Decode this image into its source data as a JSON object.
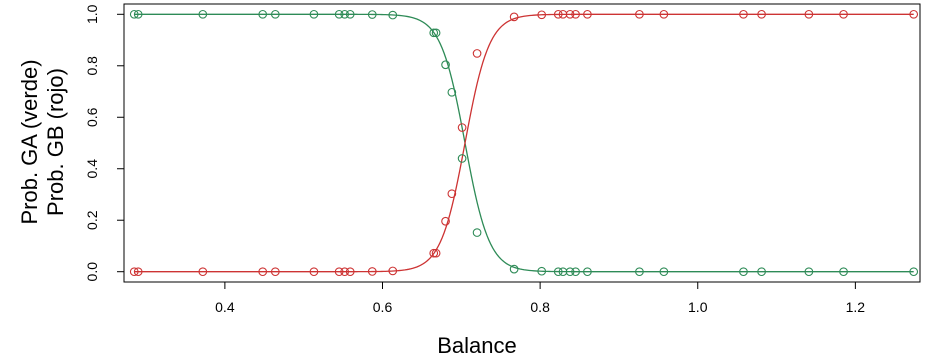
{
  "chart_data": {
    "type": "scatter",
    "title": "",
    "xlabel": "Balance",
    "ylabel_lines": [
      "Prob. GA (verde)",
      "Prob. GB (rojo)"
    ],
    "xlim": [
      0.272,
      1.282
    ],
    "ylim": [
      -0.04,
      1.04
    ],
    "xticks": [
      0.4,
      0.6,
      0.8,
      1.0,
      1.2
    ],
    "xtick_labels": [
      "0.4",
      "0.6",
      "0.8",
      "1.0",
      "1.2"
    ],
    "yticks": [
      0.0,
      0.2,
      0.4,
      0.6,
      0.8,
      1.0
    ],
    "ytick_labels": [
      "0.0",
      "0.2",
      "0.4",
      "0.6",
      "0.8",
      "1.0"
    ],
    "grid": false,
    "curve": {
      "type": "logistic",
      "midpoint": 0.7047,
      "slope": 65
    },
    "balances": [
      0.285,
      0.29,
      0.372,
      0.448,
      0.464,
      0.513,
      0.545,
      0.552,
      0.559,
      0.587,
      0.613,
      0.665,
      0.668,
      0.68,
      0.688,
      0.701,
      0.72,
      0.767,
      0.802,
      0.823,
      0.829,
      0.838,
      0.845,
      0.86,
      0.926,
      0.957,
      1.058,
      1.081,
      1.141,
      1.185,
      1.274
    ],
    "series": [
      {
        "name": "verde",
        "color": "#2e8b57",
        "values": [
          1.0,
          1.0,
          1.0,
          1.0,
          1.0,
          1.0,
          1.0,
          1.0,
          1.0,
          0.999,
          0.997,
          0.928,
          0.928,
          0.804,
          0.697,
          0.44,
          0.152,
          0.01,
          0.002,
          0.0,
          0.0,
          0.0,
          0.0,
          0.0,
          0.0,
          0.0,
          0.0,
          0.0,
          0.0,
          0.0,
          0.0
        ]
      },
      {
        "name": "rojo",
        "color": "#cd3333",
        "values": [
          0.0,
          0.0,
          0.0,
          0.0,
          0.0,
          0.0,
          0.0,
          0.0,
          0.0,
          0.001,
          0.003,
          0.072,
          0.072,
          0.196,
          0.303,
          0.56,
          0.848,
          0.99,
          0.998,
          1.0,
          1.0,
          1.0,
          1.0,
          1.0,
          1.0,
          1.0,
          1.0,
          1.0,
          1.0,
          1.0,
          1.0
        ]
      }
    ]
  }
}
